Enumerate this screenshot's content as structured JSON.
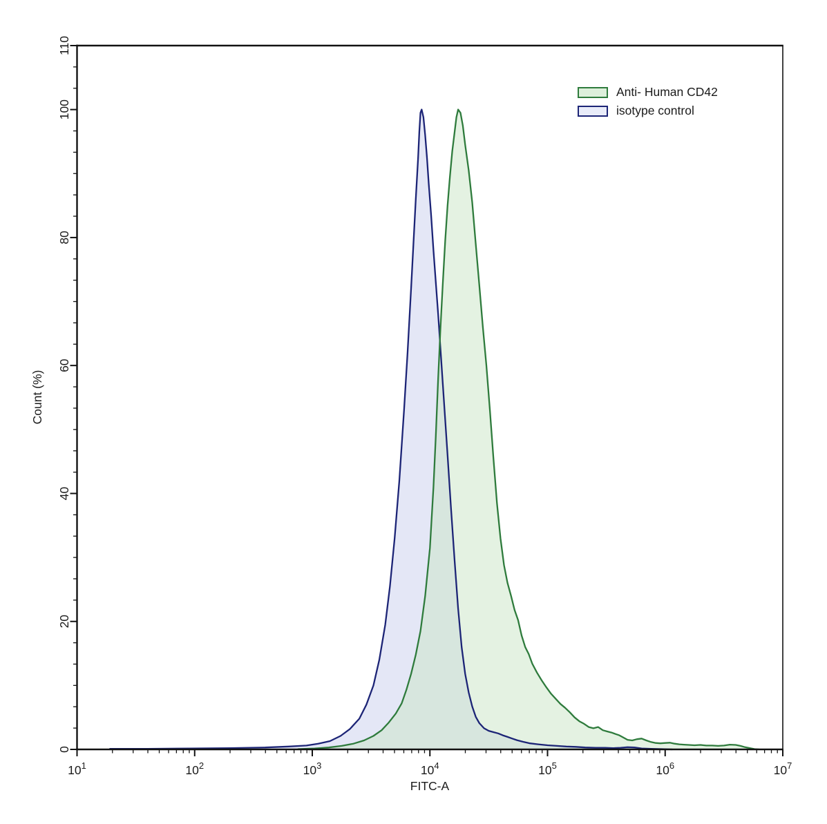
{
  "chart_data": {
    "type": "area",
    "title": "",
    "xlabel": "FITC-A",
    "ylabel": "Count  (%)",
    "x_scale": "log10",
    "xlim_log10": [
      1,
      7
    ],
    "x_ticks_exponents": [
      1,
      2,
      3,
      4,
      5,
      6,
      7
    ],
    "x_tick_base": "10",
    "ylim": [
      0,
      110
    ],
    "y_major_ticks": [
      0,
      20,
      40,
      60,
      80,
      100,
      110
    ],
    "y_minor_interval": 3.3333,
    "grid": false,
    "legend_position": "top-right",
    "axis_color": "#111111",
    "series": [
      {
        "id": "anti-human-cd42",
        "name": "Anti- Human CD42",
        "stroke": "#2e7b3c",
        "fill": "#c9e5c5",
        "fill_opacity": 0.5,
        "legend_fill": "#ddefdb",
        "points": [
          [
            2.88,
            0.05
          ],
          [
            3.02,
            0.15
          ],
          [
            3.14,
            0.3
          ],
          [
            3.25,
            0.55
          ],
          [
            3.35,
            0.9
          ],
          [
            3.44,
            1.4
          ],
          [
            3.52,
            2.1
          ],
          [
            3.59,
            3
          ],
          [
            3.65,
            4.2
          ],
          [
            3.71,
            5.6
          ],
          [
            3.76,
            7.2
          ],
          [
            3.8,
            9.3
          ],
          [
            3.84,
            11.8
          ],
          [
            3.88,
            14.8
          ],
          [
            3.92,
            18.5
          ],
          [
            3.96,
            24
          ],
          [
            4.0,
            31.5
          ],
          [
            4.03,
            41
          ],
          [
            4.05,
            49
          ],
          [
            4.07,
            58
          ],
          [
            4.09,
            66
          ],
          [
            4.11,
            73
          ],
          [
            4.13,
            79.5
          ],
          [
            4.15,
            85
          ],
          [
            4.17,
            89.5
          ],
          [
            4.19,
            93.5
          ],
          [
            4.21,
            96.5
          ],
          [
            4.225,
            98.8
          ],
          [
            4.24,
            100
          ],
          [
            4.26,
            99.5
          ],
          [
            4.28,
            97.5
          ],
          [
            4.3,
            94.5
          ],
          [
            4.33,
            90.5
          ],
          [
            4.36,
            85.5
          ],
          [
            4.39,
            79
          ],
          [
            4.42,
            72.5
          ],
          [
            4.45,
            66
          ],
          [
            4.48,
            60
          ],
          [
            4.51,
            53
          ],
          [
            4.54,
            45.5
          ],
          [
            4.57,
            38.5
          ],
          [
            4.6,
            33
          ],
          [
            4.63,
            28.8
          ],
          [
            4.66,
            26
          ],
          [
            4.69,
            24
          ],
          [
            4.72,
            21.8
          ],
          [
            4.75,
            20.2
          ],
          [
            4.78,
            17.8
          ],
          [
            4.81,
            16
          ],
          [
            4.84,
            14.9
          ],
          [
            4.87,
            13.4
          ],
          [
            4.91,
            12
          ],
          [
            4.95,
            10.8
          ],
          [
            4.99,
            9.7
          ],
          [
            5.03,
            8.7
          ],
          [
            5.07,
            7.9
          ],
          [
            5.11,
            7.1
          ],
          [
            5.15,
            6.5
          ],
          [
            5.19,
            5.8
          ],
          [
            5.23,
            5
          ],
          [
            5.27,
            4.4
          ],
          [
            5.31,
            4
          ],
          [
            5.35,
            3.5
          ],
          [
            5.39,
            3.3
          ],
          [
            5.43,
            3.5
          ],
          [
            5.47,
            3
          ],
          [
            5.51,
            2.8
          ],
          [
            5.55,
            2.6
          ],
          [
            5.58,
            2.4
          ],
          [
            5.61,
            2.2
          ],
          [
            5.64,
            1.9
          ],
          [
            5.68,
            1.5
          ],
          [
            5.72,
            1.4
          ],
          [
            5.76,
            1.6
          ],
          [
            5.8,
            1.7
          ],
          [
            5.84,
            1.4
          ],
          [
            5.88,
            1.15
          ],
          [
            5.92,
            1
          ],
          [
            5.96,
            0.95
          ],
          [
            6.0,
            1
          ],
          [
            6.04,
            1.05
          ],
          [
            6.08,
            0.9
          ],
          [
            6.12,
            0.8
          ],
          [
            6.16,
            0.75
          ],
          [
            6.2,
            0.7
          ],
          [
            6.25,
            0.65
          ],
          [
            6.3,
            0.7
          ],
          [
            6.35,
            0.6
          ],
          [
            6.4,
            0.6
          ],
          [
            6.45,
            0.55
          ],
          [
            6.5,
            0.6
          ],
          [
            6.55,
            0.75
          ],
          [
            6.6,
            0.7
          ],
          [
            6.64,
            0.55
          ],
          [
            6.68,
            0.35
          ],
          [
            6.72,
            0.2
          ],
          [
            6.76,
            0.05
          ],
          [
            6.8,
            0
          ]
        ]
      },
      {
        "id": "isotype-control",
        "name": "isotype control",
        "stroke": "#1c2476",
        "fill": "#c9cfee",
        "fill_opacity": 0.5,
        "legend_fill": "#e9ecf9",
        "points": [
          [
            1.28,
            0.1
          ],
          [
            1.6,
            0.1
          ],
          [
            1.95,
            0.15
          ],
          [
            2.3,
            0.2
          ],
          [
            2.6,
            0.3
          ],
          [
            2.8,
            0.45
          ],
          [
            2.95,
            0.6
          ],
          [
            3.05,
            0.9
          ],
          [
            3.15,
            1.3
          ],
          [
            3.24,
            2.1
          ],
          [
            3.32,
            3.2
          ],
          [
            3.4,
            4.8
          ],
          [
            3.46,
            7
          ],
          [
            3.52,
            10
          ],
          [
            3.57,
            14
          ],
          [
            3.62,
            19.5
          ],
          [
            3.66,
            25.5
          ],
          [
            3.7,
            33
          ],
          [
            3.74,
            42
          ],
          [
            3.78,
            53
          ],
          [
            3.81,
            62
          ],
          [
            3.84,
            72
          ],
          [
            3.86,
            79
          ],
          [
            3.88,
            86
          ],
          [
            3.9,
            92.5
          ],
          [
            3.91,
            96.5
          ],
          [
            3.92,
            99.5
          ],
          [
            3.93,
            100
          ],
          [
            3.945,
            98.8
          ],
          [
            3.96,
            96
          ],
          [
            3.975,
            92.5
          ],
          [
            3.99,
            88.5
          ],
          [
            4.01,
            83.5
          ],
          [
            4.03,
            78
          ],
          [
            4.05,
            73
          ],
          [
            4.07,
            68
          ],
          [
            4.09,
            62.5
          ],
          [
            4.11,
            57
          ],
          [
            4.13,
            51.5
          ],
          [
            4.15,
            46
          ],
          [
            4.18,
            37.5
          ],
          [
            4.21,
            29.5
          ],
          [
            4.24,
            22
          ],
          [
            4.27,
            16
          ],
          [
            4.3,
            11.8
          ],
          [
            4.33,
            8.9
          ],
          [
            4.36,
            6.7
          ],
          [
            4.39,
            5.1
          ],
          [
            4.42,
            4.1
          ],
          [
            4.46,
            3.3
          ],
          [
            4.5,
            2.9
          ],
          [
            4.54,
            2.7
          ],
          [
            4.58,
            2.5
          ],
          [
            4.62,
            2.2
          ],
          [
            4.66,
            1.95
          ],
          [
            4.7,
            1.7
          ],
          [
            4.74,
            1.45
          ],
          [
            4.79,
            1.2
          ],
          [
            4.85,
            0.95
          ],
          [
            4.92,
            0.8
          ],
          [
            5.0,
            0.65
          ],
          [
            5.08,
            0.55
          ],
          [
            5.16,
            0.45
          ],
          [
            5.24,
            0.4
          ],
          [
            5.32,
            0.3
          ],
          [
            5.41,
            0.25
          ],
          [
            5.49,
            0.25
          ],
          [
            5.56,
            0.2
          ],
          [
            5.62,
            0.25
          ],
          [
            5.68,
            0.35
          ],
          [
            5.74,
            0.3
          ],
          [
            5.8,
            0.15
          ],
          [
            5.88,
            0.1
          ],
          [
            5.97,
            0.05
          ],
          [
            6.06,
            0
          ]
        ]
      }
    ]
  }
}
